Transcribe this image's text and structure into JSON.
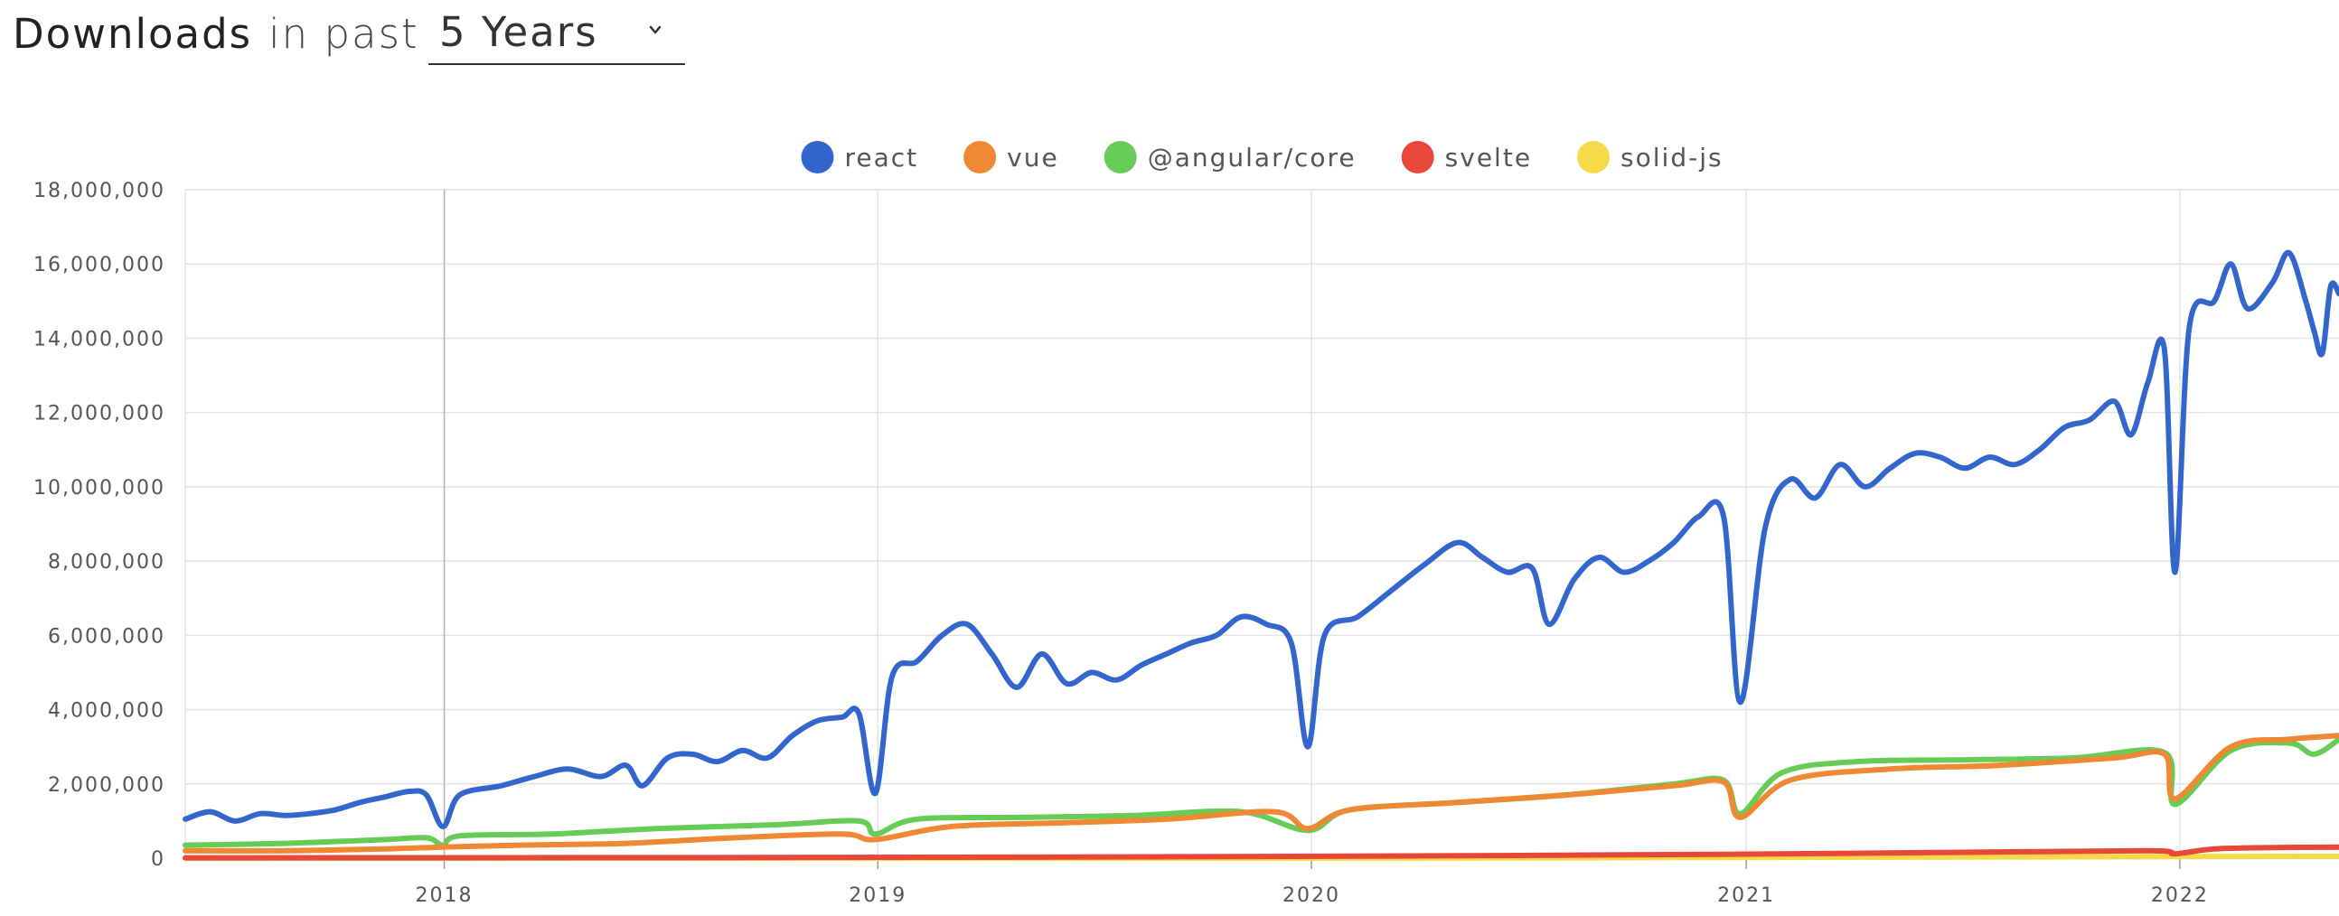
{
  "header": {
    "title_strong": "Downloads",
    "title_light": "in past"
  },
  "period_select": {
    "value": "5 Years",
    "icon": "chevron-down-icon"
  },
  "chart_data": {
    "type": "line",
    "title": "",
    "xlabel": "",
    "ylabel": "",
    "ylim": [
      0,
      18000000
    ],
    "xlim": [
      "2017-05-28",
      "2022-05-15"
    ],
    "y_ticks": [
      0,
      2000000,
      4000000,
      6000000,
      8000000,
      10000000,
      12000000,
      14000000,
      16000000,
      18000000
    ],
    "y_tick_labels": [
      "0",
      "2,000,000",
      "4,000,000",
      "6,000,000",
      "8,000,000",
      "10,000,000",
      "12,000,000",
      "14,000,000",
      "16,000,000",
      "18,000,000"
    ],
    "x_ticks": [
      "2018-01-01",
      "2019-01-01",
      "2020-01-01",
      "2021-01-01",
      "2022-01-01"
    ],
    "x_tick_labels": [
      "2018",
      "2019",
      "2020",
      "2021",
      "2022"
    ],
    "grid": true,
    "legend_position": "top-center",
    "series": [
      {
        "name": "react",
        "color": "#3366CC",
        "points": [
          [
            "2017-05-28",
            1050000
          ],
          [
            "2017-06-18",
            1250000
          ],
          [
            "2017-07-09",
            1000000
          ],
          [
            "2017-07-30",
            1200000
          ],
          [
            "2017-08-20",
            1150000
          ],
          [
            "2017-09-10",
            1200000
          ],
          [
            "2017-10-01",
            1300000
          ],
          [
            "2017-10-22",
            1500000
          ],
          [
            "2017-11-12",
            1650000
          ],
          [
            "2017-12-03",
            1800000
          ],
          [
            "2017-12-17",
            1700000
          ],
          [
            "2017-12-31",
            850000
          ],
          [
            "2018-01-14",
            1700000
          ],
          [
            "2018-02-18",
            1950000
          ],
          [
            "2018-03-18",
            2200000
          ],
          [
            "2018-04-15",
            2400000
          ],
          [
            "2018-05-13",
            2200000
          ],
          [
            "2018-06-03",
            2500000
          ],
          [
            "2018-06-17",
            1950000
          ],
          [
            "2018-07-08",
            2700000
          ],
          [
            "2018-07-29",
            2800000
          ],
          [
            "2018-08-19",
            2600000
          ],
          [
            "2018-09-09",
            2900000
          ],
          [
            "2018-09-30",
            2700000
          ],
          [
            "2018-10-21",
            3300000
          ],
          [
            "2018-11-11",
            3700000
          ],
          [
            "2018-12-02",
            3800000
          ],
          [
            "2018-12-16",
            3900000
          ],
          [
            "2018-12-30",
            1750000
          ],
          [
            "2019-01-13",
            4900000
          ],
          [
            "2019-02-03",
            5300000
          ],
          [
            "2019-02-24",
            6000000
          ],
          [
            "2019-03-17",
            6300000
          ],
          [
            "2019-04-07",
            5500000
          ],
          [
            "2019-04-28",
            4600000
          ],
          [
            "2019-05-19",
            5500000
          ],
          [
            "2019-06-09",
            4700000
          ],
          [
            "2019-06-30",
            5000000
          ],
          [
            "2019-07-21",
            4800000
          ],
          [
            "2019-08-11",
            5200000
          ],
          [
            "2019-09-01",
            5500000
          ],
          [
            "2019-09-22",
            5800000
          ],
          [
            "2019-10-13",
            6000000
          ],
          [
            "2019-11-03",
            6500000
          ],
          [
            "2019-11-24",
            6300000
          ],
          [
            "2019-12-15",
            5800000
          ],
          [
            "2019-12-29",
            3000000
          ],
          [
            "2020-01-12",
            6000000
          ],
          [
            "2020-02-09",
            6500000
          ],
          [
            "2020-03-08",
            7200000
          ],
          [
            "2020-04-05",
            7900000
          ],
          [
            "2020-05-03",
            8500000
          ],
          [
            "2020-05-24",
            8100000
          ],
          [
            "2020-06-14",
            7700000
          ],
          [
            "2020-07-05",
            7800000
          ],
          [
            "2020-07-19",
            6300000
          ],
          [
            "2020-08-09",
            7500000
          ],
          [
            "2020-08-30",
            8100000
          ],
          [
            "2020-09-20",
            7700000
          ],
          [
            "2020-10-11",
            8000000
          ],
          [
            "2020-11-01",
            8500000
          ],
          [
            "2020-11-22",
            9200000
          ],
          [
            "2020-12-13",
            9200000
          ],
          [
            "2020-12-27",
            4200000
          ],
          [
            "2021-01-17",
            8900000
          ],
          [
            "2021-02-07",
            10200000
          ],
          [
            "2021-02-28",
            9700000
          ],
          [
            "2021-03-21",
            10600000
          ],
          [
            "2021-04-11",
            10000000
          ],
          [
            "2021-05-02",
            10500000
          ],
          [
            "2021-05-23",
            10900000
          ],
          [
            "2021-06-13",
            10800000
          ],
          [
            "2021-07-04",
            10500000
          ],
          [
            "2021-07-25",
            10800000
          ],
          [
            "2021-08-15",
            10600000
          ],
          [
            "2021-09-05",
            11000000
          ],
          [
            "2021-09-26",
            11600000
          ],
          [
            "2021-10-17",
            11800000
          ],
          [
            "2021-11-07",
            12300000
          ],
          [
            "2021-11-21",
            11400000
          ],
          [
            "2021-12-05",
            12800000
          ],
          [
            "2021-12-19",
            13700000
          ],
          [
            "2021-12-28",
            7700000
          ],
          [
            "2022-01-09",
            14300000
          ],
          [
            "2022-01-30",
            15000000
          ],
          [
            "2022-02-13",
            16000000
          ],
          [
            "2022-02-27",
            14800000
          ],
          [
            "2022-03-20",
            15500000
          ],
          [
            "2022-04-03",
            16300000
          ],
          [
            "2022-04-17",
            15000000
          ],
          [
            "2022-04-24",
            14200000
          ],
          [
            "2022-05-01",
            13600000
          ],
          [
            "2022-05-08",
            15400000
          ],
          [
            "2022-05-15",
            15200000
          ]
        ]
      },
      {
        "name": "vue",
        "color": "#EE8833",
        "points": [
          [
            "2017-05-28",
            200000
          ],
          [
            "2017-08-20",
            200000
          ],
          [
            "2017-11-12",
            250000
          ],
          [
            "2017-12-31",
            300000
          ],
          [
            "2018-03-04",
            350000
          ],
          [
            "2018-06-03",
            400000
          ],
          [
            "2018-09-02",
            550000
          ],
          [
            "2018-12-02",
            650000
          ],
          [
            "2018-12-30",
            500000
          ],
          [
            "2019-03-03",
            850000
          ],
          [
            "2019-06-02",
            950000
          ],
          [
            "2019-09-01",
            1050000
          ],
          [
            "2019-12-01",
            1250000
          ],
          [
            "2019-12-29",
            800000
          ],
          [
            "2020-02-02",
            1300000
          ],
          [
            "2020-05-03",
            1500000
          ],
          [
            "2020-08-02",
            1700000
          ],
          [
            "2020-11-01",
            1950000
          ],
          [
            "2020-12-13",
            2050000
          ],
          [
            "2020-12-27",
            1100000
          ],
          [
            "2021-02-07",
            2100000
          ],
          [
            "2021-05-02",
            2400000
          ],
          [
            "2021-08-01",
            2500000
          ],
          [
            "2021-11-07",
            2700000
          ],
          [
            "2021-12-19",
            2800000
          ],
          [
            "2021-12-28",
            1600000
          ],
          [
            "2022-02-13",
            3000000
          ],
          [
            "2022-04-03",
            3200000
          ],
          [
            "2022-05-15",
            3300000
          ]
        ]
      },
      {
        "name": "@angular/core",
        "color": "#66CC55",
        "points": [
          [
            "2017-05-28",
            350000
          ],
          [
            "2017-08-20",
            400000
          ],
          [
            "2017-11-12",
            500000
          ],
          [
            "2017-12-17",
            550000
          ],
          [
            "2017-12-31",
            350000
          ],
          [
            "2018-01-14",
            600000
          ],
          [
            "2018-04-01",
            650000
          ],
          [
            "2018-07-01",
            800000
          ],
          [
            "2018-10-07",
            900000
          ],
          [
            "2018-12-16",
            1000000
          ],
          [
            "2018-12-30",
            650000
          ],
          [
            "2019-02-03",
            1050000
          ],
          [
            "2019-05-05",
            1100000
          ],
          [
            "2019-08-04",
            1150000
          ],
          [
            "2019-11-03",
            1250000
          ],
          [
            "2019-12-29",
            750000
          ],
          [
            "2020-02-02",
            1300000
          ],
          [
            "2020-05-03",
            1500000
          ],
          [
            "2020-08-02",
            1700000
          ],
          [
            "2020-11-01",
            2000000
          ],
          [
            "2020-12-13",
            2100000
          ],
          [
            "2020-12-27",
            1200000
          ],
          [
            "2021-01-31",
            2300000
          ],
          [
            "2021-04-04",
            2600000
          ],
          [
            "2021-07-04",
            2650000
          ],
          [
            "2021-10-03",
            2700000
          ],
          [
            "2021-12-19",
            2850000
          ],
          [
            "2021-12-28",
            1450000
          ],
          [
            "2022-02-13",
            2900000
          ],
          [
            "2022-04-03",
            3100000
          ],
          [
            "2022-04-24",
            2800000
          ],
          [
            "2022-05-15",
            3200000
          ]
        ]
      },
      {
        "name": "svelte",
        "color": "#E8473A",
        "points": [
          [
            "2017-05-28",
            10000
          ],
          [
            "2018-06-03",
            15000
          ],
          [
            "2019-06-02",
            30000
          ],
          [
            "2020-06-07",
            70000
          ],
          [
            "2021-01-03",
            110000
          ],
          [
            "2021-06-06",
            150000
          ],
          [
            "2021-12-05",
            200000
          ],
          [
            "2021-12-28",
            120000
          ],
          [
            "2022-02-06",
            260000
          ],
          [
            "2022-05-15",
            300000
          ]
        ]
      },
      {
        "name": "solid-js",
        "color": "#F6DA48",
        "points": [
          [
            "2017-05-28",
            0
          ],
          [
            "2020-01-05",
            0
          ],
          [
            "2021-01-03",
            20000
          ],
          [
            "2022-05-15",
            50000
          ]
        ]
      }
    ]
  }
}
